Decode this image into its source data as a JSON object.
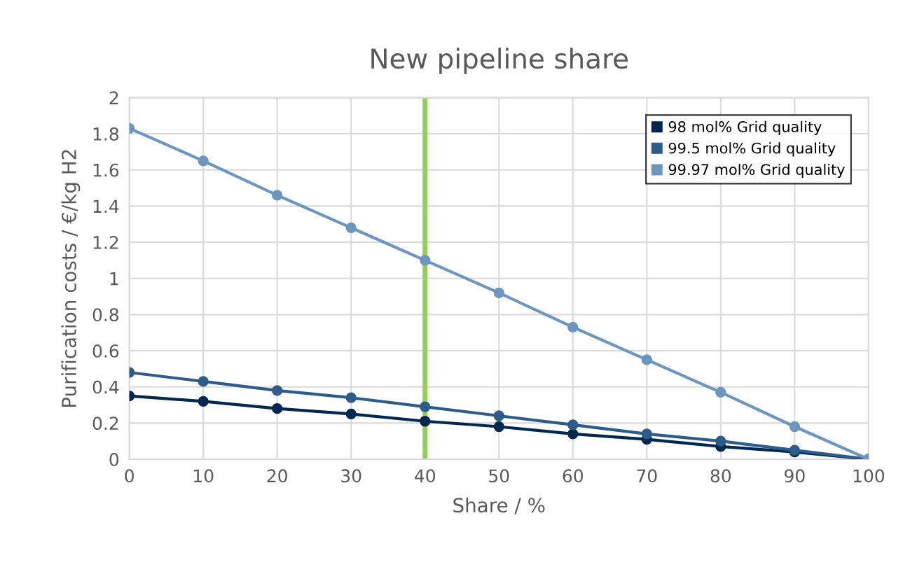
{
  "chart_data": {
    "type": "line",
    "title": "New pipeline share",
    "xlabel": "Share / %",
    "ylabel": "Purification costs / €/kg H2",
    "x": [
      0,
      10,
      20,
      30,
      40,
      50,
      60,
      70,
      80,
      90,
      100
    ],
    "series": [
      {
        "name": "98 mol% Grid quality",
        "color": "#002850",
        "values": [
          0.35,
          0.32,
          0.28,
          0.25,
          0.21,
          0.18,
          0.14,
          0.11,
          0.07,
          0.04,
          0
        ]
      },
      {
        "name": "99.5 mol% Grid quality",
        "color": "#2e5c8a",
        "values": [
          0.48,
          0.43,
          0.38,
          0.34,
          0.29,
          0.24,
          0.19,
          0.14,
          0.1,
          0.05,
          0
        ]
      },
      {
        "name": "99.97 mol% Grid quality",
        "color": "#6b96bf",
        "values": [
          1.83,
          1.65,
          1.46,
          1.28,
          1.1,
          0.92,
          0.73,
          0.55,
          0.37,
          0.18,
          0
        ]
      }
    ],
    "xlim": [
      0,
      100
    ],
    "xticks": [
      0,
      10,
      20,
      30,
      40,
      50,
      60,
      70,
      80,
      90,
      100
    ],
    "ylim": [
      0,
      2
    ],
    "yticks": [
      0,
      0.2,
      0.4,
      0.6,
      0.8,
      1,
      1.2,
      1.4,
      1.6,
      1.8,
      2
    ],
    "ref_lines": [
      {
        "axis": "x",
        "value": 40,
        "color": "#92d050"
      }
    ],
    "grid": true,
    "legend": "top right",
    "marker": "circle",
    "line_style": "solid"
  }
}
